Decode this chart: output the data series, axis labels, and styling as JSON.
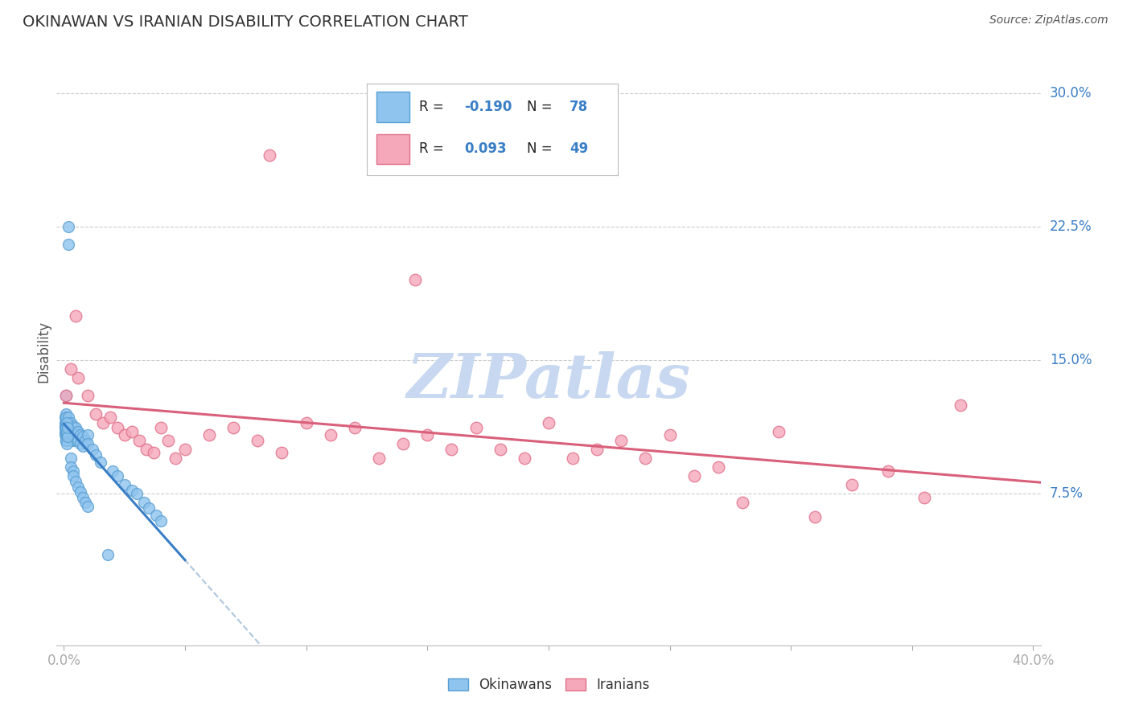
{
  "title": "OKINAWAN VS IRANIAN DISABILITY CORRELATION CHART",
  "source": "Source: ZipAtlas.com",
  "ylabel": "Disability",
  "yticks": [
    0.075,
    0.15,
    0.225,
    0.3
  ],
  "ytick_labels": [
    "7.5%",
    "15.0%",
    "22.5%",
    "30.0%"
  ],
  "xtick_labels": [
    "0.0%",
    "",
    "",
    "",
    "",
    "",
    "",
    "",
    "40.0%"
  ],
  "legend_label1": "Okinawans",
  "legend_label2": "Iranians",
  "R1_str": "-0.190",
  "N1_str": "78",
  "R2_str": "0.093",
  "N2_str": "49",
  "okinawan_color": "#8EC4EE",
  "okinawan_edge": "#5A9FD4",
  "iranian_color": "#F5A8BA",
  "iranian_edge": "#E0708A",
  "trend_okinawan_color": "#3A7EC6",
  "trend_iranian_color": "#D9607A",
  "watermark_color": "#C8D8F0",
  "grid_color": "#CCCCCC",
  "label_color": "#3A7EC6",
  "text_color": "#333333",
  "source_color": "#555555",
  "xlim": [
    -0.003,
    0.403
  ],
  "ylim": [
    -0.01,
    0.32
  ],
  "ok_x": [
    0.0005,
    0.0005,
    0.0005,
    0.0006,
    0.0006,
    0.0007,
    0.0008,
    0.0008,
    0.001,
    0.001,
    0.001,
    0.001,
    0.001,
    0.001,
    0.001,
    0.001,
    0.0015,
    0.0015,
    0.0015,
    0.0015,
    0.002,
    0.002,
    0.002,
    0.002,
    0.002,
    0.002,
    0.002,
    0.003,
    0.003,
    0.003,
    0.003,
    0.003,
    0.004,
    0.004,
    0.004,
    0.005,
    0.005,
    0.005,
    0.006,
    0.006,
    0.007,
    0.007,
    0.008,
    0.008,
    0.009,
    0.01,
    0.01,
    0.012,
    0.013,
    0.015,
    0.018,
    0.02,
    0.022,
    0.025,
    0.028,
    0.03,
    0.033,
    0.035,
    0.038,
    0.04,
    0.001,
    0.001,
    0.0012,
    0.0012,
    0.0013,
    0.0013,
    0.0014,
    0.0014,
    0.003,
    0.003,
    0.004,
    0.004,
    0.005,
    0.006,
    0.007,
    0.008,
    0.009,
    0.01
  ],
  "ok_y": [
    0.115,
    0.11,
    0.118,
    0.113,
    0.108,
    0.112,
    0.117,
    0.105,
    0.13,
    0.12,
    0.115,
    0.108,
    0.113,
    0.105,
    0.11,
    0.118,
    0.112,
    0.108,
    0.115,
    0.11,
    0.225,
    0.215,
    0.113,
    0.108,
    0.112,
    0.105,
    0.118,
    0.115,
    0.11,
    0.107,
    0.112,
    0.108,
    0.11,
    0.105,
    0.113,
    0.112,
    0.108,
    0.105,
    0.11,
    0.105,
    0.108,
    0.103,
    0.107,
    0.102,
    0.105,
    0.108,
    0.103,
    0.1,
    0.097,
    0.093,
    0.041,
    0.088,
    0.085,
    0.08,
    0.077,
    0.075,
    0.07,
    0.067,
    0.063,
    0.06,
    0.105,
    0.112,
    0.108,
    0.115,
    0.11,
    0.103,
    0.107,
    0.112,
    0.095,
    0.09,
    0.088,
    0.085,
    0.082,
    0.079,
    0.076,
    0.073,
    0.07,
    0.068
  ],
  "ir_x": [
    0.085,
    0.005,
    0.145,
    0.001,
    0.003,
    0.006,
    0.01,
    0.013,
    0.016,
    0.019,
    0.022,
    0.025,
    0.028,
    0.031,
    0.034,
    0.037,
    0.04,
    0.043,
    0.046,
    0.05,
    0.06,
    0.07,
    0.08,
    0.09,
    0.1,
    0.11,
    0.12,
    0.13,
    0.14,
    0.15,
    0.16,
    0.17,
    0.18,
    0.19,
    0.2,
    0.21,
    0.22,
    0.23,
    0.24,
    0.25,
    0.26,
    0.27,
    0.28,
    0.295,
    0.31,
    0.325,
    0.34,
    0.355,
    0.37
  ],
  "ir_y": [
    0.265,
    0.175,
    0.195,
    0.13,
    0.145,
    0.14,
    0.13,
    0.12,
    0.115,
    0.118,
    0.112,
    0.108,
    0.11,
    0.105,
    0.1,
    0.098,
    0.112,
    0.105,
    0.095,
    0.1,
    0.108,
    0.112,
    0.105,
    0.098,
    0.115,
    0.108,
    0.112,
    0.095,
    0.103,
    0.108,
    0.1,
    0.112,
    0.1,
    0.095,
    0.115,
    0.095,
    0.1,
    0.105,
    0.095,
    0.108,
    0.085,
    0.09,
    0.07,
    0.11,
    0.062,
    0.08,
    0.088,
    0.073,
    0.125
  ]
}
